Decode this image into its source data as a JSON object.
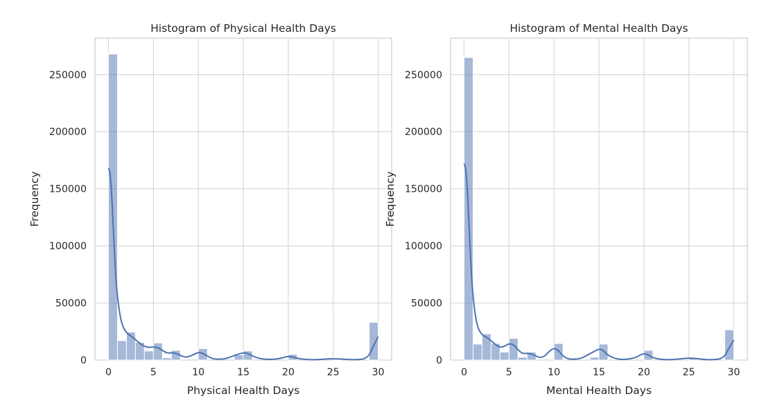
{
  "chart_data": [
    {
      "type": "bar",
      "subtype": "histogram_with_kde",
      "title": "Histogram of Physical Health Days",
      "xlabel": "Physical Health Days",
      "ylabel": "Frequency",
      "xlim": [
        -1.5,
        31.5
      ],
      "ylim": [
        0,
        282000
      ],
      "xticks": [
        0,
        5,
        10,
        15,
        20,
        25,
        30
      ],
      "yticks": [
        0,
        50000,
        100000,
        150000,
        200000,
        250000
      ],
      "bin_width": 1,
      "bins": [
        {
          "x0": 0,
          "x1": 1,
          "value": 268000
        },
        {
          "x0": 1,
          "x1": 2,
          "value": 17000
        },
        {
          "x0": 2,
          "x1": 3,
          "value": 24500
        },
        {
          "x0": 3,
          "x1": 4,
          "value": 15500
        },
        {
          "x0": 4,
          "x1": 5,
          "value": 8000
        },
        {
          "x0": 5,
          "x1": 6,
          "value": 15000
        },
        {
          "x0": 6,
          "x1": 7,
          "value": 2000
        },
        {
          "x0": 7,
          "x1": 8,
          "value": 8500
        },
        {
          "x0": 10,
          "x1": 11,
          "value": 10000
        },
        {
          "x0": 14,
          "x1": 15,
          "value": 4500
        },
        {
          "x0": 15,
          "x1": 16,
          "value": 8000
        },
        {
          "x0": 20,
          "x1": 21,
          "value": 5000
        },
        {
          "x0": 25,
          "x1": 26,
          "value": 1200
        },
        {
          "x0": 29,
          "x1": 30,
          "value": 33000
        }
      ],
      "kde": [
        [
          0,
          168000
        ],
        [
          0.2,
          164000
        ],
        [
          0.4,
          140000
        ],
        [
          0.6,
          105000
        ],
        [
          0.8,
          75000
        ],
        [
          1,
          55000
        ],
        [
          1.3,
          38000
        ],
        [
          1.6,
          29000
        ],
        [
          2,
          24000
        ],
        [
          2.5,
          21000
        ],
        [
          3,
          18000
        ],
        [
          3.5,
          14500
        ],
        [
          4,
          12000
        ],
        [
          4.5,
          11000
        ],
        [
          5,
          11500
        ],
        [
          5.5,
          11000
        ],
        [
          6,
          8500
        ],
        [
          6.5,
          6000
        ],
        [
          7,
          6500
        ],
        [
          7.5,
          6000
        ],
        [
          8,
          4000
        ],
        [
          8.5,
          2500
        ],
        [
          9,
          3000
        ],
        [
          9.5,
          5000
        ],
        [
          10,
          6800
        ],
        [
          10.5,
          6000
        ],
        [
          11,
          3500
        ],
        [
          11.5,
          1500
        ],
        [
          12,
          700
        ],
        [
          13,
          1000
        ],
        [
          14,
          4000
        ],
        [
          15,
          6500
        ],
        [
          15.5,
          6000
        ],
        [
          16,
          3500
        ],
        [
          17,
          900
        ],
        [
          18,
          500
        ],
        [
          19,
          1200
        ],
        [
          19.5,
          2400
        ],
        [
          20,
          3300
        ],
        [
          20.5,
          2800
        ],
        [
          21,
          1500
        ],
        [
          22,
          400
        ],
        [
          23,
          300
        ],
        [
          24,
          800
        ],
        [
          25,
          1300
        ],
        [
          26,
          900
        ],
        [
          27,
          300
        ],
        [
          28,
          500
        ],
        [
          28.5,
          1200
        ],
        [
          29,
          4000
        ],
        [
          29.5,
          13000
        ],
        [
          30,
          20500
        ]
      ]
    },
    {
      "type": "bar",
      "subtype": "histogram_with_kde",
      "title": "Histogram of Mental Health Days",
      "xlabel": "Mental Health Days",
      "ylabel": "Frequency",
      "xlim": [
        -1.5,
        31.5
      ],
      "ylim": [
        0,
        282000
      ],
      "xticks": [
        0,
        5,
        10,
        15,
        20,
        25,
        30
      ],
      "yticks": [
        0,
        50000,
        100000,
        150000,
        200000,
        250000
      ],
      "bin_width": 1,
      "bins": [
        {
          "x0": 0,
          "x1": 1,
          "value": 265000
        },
        {
          "x0": 1,
          "x1": 2,
          "value": 14000
        },
        {
          "x0": 2,
          "x1": 3,
          "value": 23000
        },
        {
          "x0": 3,
          "x1": 4,
          "value": 14500
        },
        {
          "x0": 4,
          "x1": 5,
          "value": 7000
        },
        {
          "x0": 5,
          "x1": 6,
          "value": 19000
        },
        {
          "x0": 6,
          "x1": 7,
          "value": 2500
        },
        {
          "x0": 7,
          "x1": 8,
          "value": 7000
        },
        {
          "x0": 10,
          "x1": 11,
          "value": 14500
        },
        {
          "x0": 14,
          "x1": 15,
          "value": 2500
        },
        {
          "x0": 15,
          "x1": 16,
          "value": 14000
        },
        {
          "x0": 20,
          "x1": 21,
          "value": 8500
        },
        {
          "x0": 25,
          "x1": 26,
          "value": 2000
        },
        {
          "x0": 29,
          "x1": 30,
          "value": 26500
        }
      ],
      "kde": [
        [
          0,
          172000
        ],
        [
          0.2,
          168000
        ],
        [
          0.4,
          145000
        ],
        [
          0.6,
          110000
        ],
        [
          0.8,
          78000
        ],
        [
          1,
          55000
        ],
        [
          1.3,
          36000
        ],
        [
          1.6,
          27000
        ],
        [
          2,
          22000
        ],
        [
          2.5,
          20000
        ],
        [
          3,
          17000
        ],
        [
          3.5,
          13500
        ],
        [
          4,
          11000
        ],
        [
          4.5,
          12000
        ],
        [
          5,
          14500
        ],
        [
          5.5,
          13500
        ],
        [
          6,
          9000
        ],
        [
          6.5,
          5500
        ],
        [
          7,
          6000
        ],
        [
          7.5,
          5500
        ],
        [
          8,
          3500
        ],
        [
          8.5,
          2000
        ],
        [
          9,
          3500
        ],
        [
          9.5,
          8000
        ],
        [
          10,
          10500
        ],
        [
          10.5,
          8500
        ],
        [
          11,
          3500
        ],
        [
          11.5,
          1200
        ],
        [
          12,
          600
        ],
        [
          13,
          1200
        ],
        [
          14,
          5500
        ],
        [
          15,
          10000
        ],
        [
          15.5,
          8500
        ],
        [
          16,
          4000
        ],
        [
          17,
          800
        ],
        [
          18,
          400
        ],
        [
          19,
          2000
        ],
        [
          19.5,
          4000
        ],
        [
          20,
          5800
        ],
        [
          20.5,
          4500
        ],
        [
          21,
          2000
        ],
        [
          22,
          400
        ],
        [
          23,
          300
        ],
        [
          24,
          1000
        ],
        [
          25,
          1900
        ],
        [
          26,
          1200
        ],
        [
          27,
          300
        ],
        [
          28,
          400
        ],
        [
          28.5,
          1000
        ],
        [
          29,
          3500
        ],
        [
          29.5,
          11000
        ],
        [
          30,
          17500
        ]
      ]
    }
  ],
  "colors": {
    "bar": "#4c72b0",
    "bar_opacity": "0.5",
    "kde": "#4c72b0",
    "grid": "#d9d9d9",
    "axes_edge": "#cccccc",
    "text": "#262626",
    "background": "#ffffff"
  }
}
